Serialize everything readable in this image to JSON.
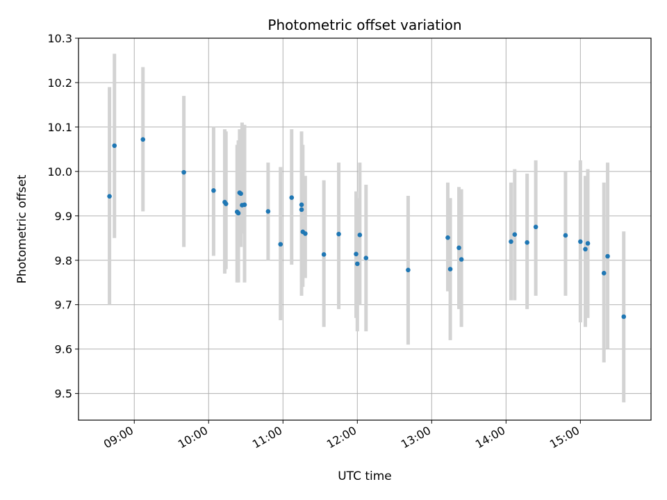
{
  "chart_data": {
    "type": "scatter",
    "title": "Photometric offset variation",
    "xlabel": "UTC time",
    "ylabel": "Photometric offset",
    "x_format": "HH:MM",
    "xlim": [
      "08:15",
      "15:57"
    ],
    "ylim": [
      9.44,
      10.3
    ],
    "xticks": [
      "09:00",
      "10:00",
      "11:00",
      "12:00",
      "13:00",
      "14:00",
      "15:00"
    ],
    "yticks": [
      "9.5",
      "9.6",
      "9.7",
      "9.8",
      "9.9",
      "10.0",
      "10.1",
      "10.2",
      "10.3"
    ],
    "grid": true,
    "colors": {
      "point": "#1f77b4",
      "errorbar": "#d3d3d3",
      "grid": "#b0b0b0"
    },
    "series": [
      {
        "x": [
          "08:40",
          "08:44",
          "09:07",
          "09:40",
          "10:04",
          "10:13",
          "10:14",
          "10:23",
          "10:24",
          "10:25",
          "10:26",
          "10:27",
          "10:29",
          "10:48",
          "10:58",
          "11:07",
          "11:15",
          "11:15",
          "11:16",
          "11:18",
          "11:33",
          "11:45",
          "11:59",
          "12:00",
          "12:02",
          "12:07",
          "12:41",
          "13:13",
          "13:15",
          "13:22",
          "13:24",
          "14:04",
          "14:07",
          "14:17",
          "14:24",
          "14:48",
          "15:00",
          "15:04",
          "15:06",
          "15:19",
          "15:22",
          "15:35"
        ],
        "y": [
          9.944,
          10.058,
          10.072,
          9.998,
          9.957,
          9.931,
          9.927,
          9.909,
          9.906,
          9.952,
          9.95,
          9.924,
          9.925,
          9.91,
          9.836,
          9.941,
          9.925,
          9.914,
          9.864,
          9.86,
          9.813,
          9.859,
          9.814,
          9.792,
          9.857,
          9.805,
          9.778,
          9.851,
          9.78,
          9.828,
          9.802,
          9.842,
          9.858,
          9.84,
          9.875,
          9.856,
          9.842,
          9.825,
          9.838,
          9.771,
          9.809,
          9.673
        ],
        "yerr_low": [
          9.7,
          9.85,
          9.91,
          9.83,
          9.81,
          9.77,
          9.78,
          9.75,
          9.75,
          9.85,
          9.83,
          9.86,
          9.75,
          9.8,
          9.665,
          9.79,
          9.75,
          9.72,
          9.74,
          9.76,
          9.65,
          9.69,
          9.67,
          9.64,
          9.7,
          9.64,
          9.61,
          9.73,
          9.62,
          9.69,
          9.65,
          9.71,
          9.71,
          9.69,
          9.72,
          9.72,
          9.66,
          9.65,
          9.67,
          9.57,
          9.6,
          9.48
        ],
        "yerr_high": [
          10.19,
          10.265,
          10.235,
          10.17,
          10.1,
          10.095,
          10.09,
          10.06,
          10.07,
          10.095,
          10.08,
          10.11,
          10.105,
          10.02,
          10.01,
          10.095,
          10.09,
          10.01,
          10.06,
          9.99,
          9.98,
          10.02,
          9.955,
          9.94,
          10.02,
          9.97,
          9.945,
          9.975,
          9.94,
          9.965,
          9.96,
          9.975,
          10.005,
          9.995,
          10.025,
          10.0,
          10.025,
          9.99,
          10.005,
          9.975,
          10.02,
          9.865
        ]
      }
    ]
  }
}
